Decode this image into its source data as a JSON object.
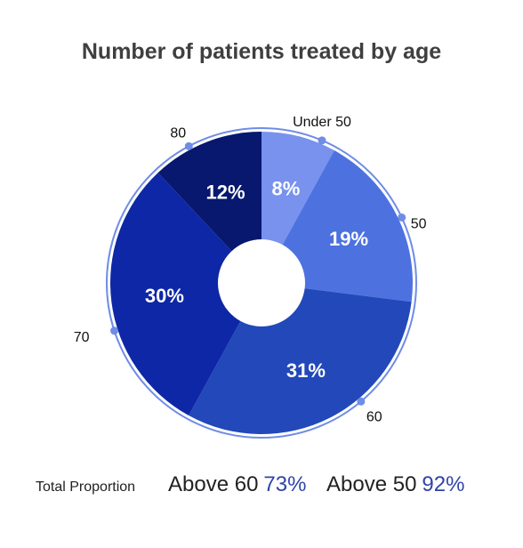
{
  "chart_data": {
    "type": "pie",
    "variant": "donut",
    "title": "Number of patients treated by age",
    "categories": [
      "Under 50",
      "50",
      "60",
      "70",
      "80"
    ],
    "values": [
      8,
      19,
      31,
      30,
      12
    ],
    "value_labels": [
      "8%",
      "19%",
      "31%",
      "30%",
      "12%"
    ],
    "colors": [
      "#7892ee",
      "#4d72e0",
      "#2248b9",
      "#0e27a6",
      "#07186e"
    ],
    "ring_color": "#6f8ce6"
  },
  "summary": {
    "label": "Total Proportion",
    "items": [
      {
        "label": "Above 60",
        "value": "73%"
      },
      {
        "label": "Above 50",
        "value": "92%"
      }
    ]
  },
  "colors": {
    "accent": "#2f44a8",
    "title": "#3f3f3f"
  }
}
